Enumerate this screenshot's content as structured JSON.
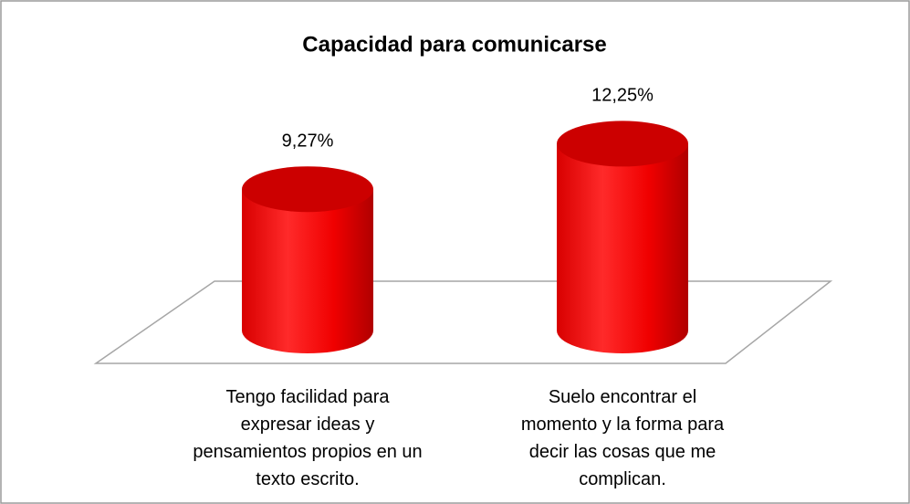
{
  "chart_data": {
    "type": "cylinder",
    "title": "Capacidad para comunicarse",
    "categories": [
      "Tengo facilidad para expresar ideas y pensamientos propios en un texto escrito.",
      "Suelo encontrar el momento y la forma para decir las cosas que me complican."
    ],
    "values": [
      9.27,
      12.25
    ],
    "value_labels": [
      "9,27%",
      "12,25%"
    ],
    "color": "#ff0000"
  }
}
